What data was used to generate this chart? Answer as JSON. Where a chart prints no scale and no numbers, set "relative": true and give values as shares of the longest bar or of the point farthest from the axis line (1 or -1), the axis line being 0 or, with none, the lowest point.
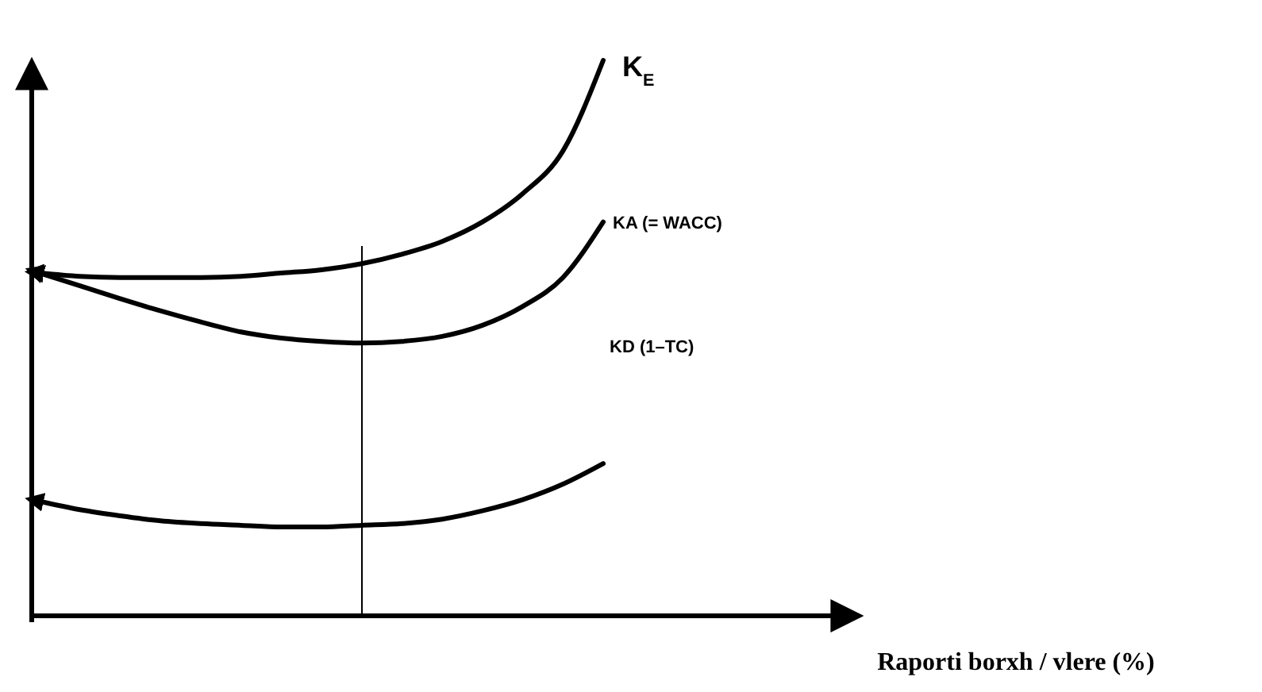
{
  "chart_data": {
    "type": "line",
    "relative": true,
    "categories": [
      null,
      null,
      null,
      null,
      null,
      null,
      null,
      null,
      null,
      null,
      null,
      null,
      null,
      null,
      null
    ],
    "series": [
      {
        "name": "K$_{E}$",
        "color": "#000000",
        "values": [
          0.617,
          0.611,
          0.609,
          0.609,
          0.609,
          0.611,
          0.617,
          0.623,
          0.634,
          0.651,
          0.674,
          0.709,
          0.76,
          0.837,
          1
        ]
      },
      {
        "name": "KA  (= WACC)",
        "color": "#000000",
        "values": [
          0.617,
          0.594,
          0.571,
          0.549,
          0.529,
          0.511,
          0.5,
          0.494,
          0.491,
          0.494,
          0.503,
          0.523,
          0.557,
          0.609,
          0.709
        ]
      },
      {
        "name": "KD (1–TC)",
        "color": "#000000",
        "values": [
          0.206,
          0.191,
          0.18,
          0.171,
          0.166,
          0.163,
          0.16,
          0.16,
          0.163,
          0.166,
          0.174,
          0.189,
          0.209,
          0.237,
          0.274
        ]
      }
    ],
    "annotations": [
      "Raporti borxh / vlere (%)"
    ],
    "line_style": "solid"
  }
}
